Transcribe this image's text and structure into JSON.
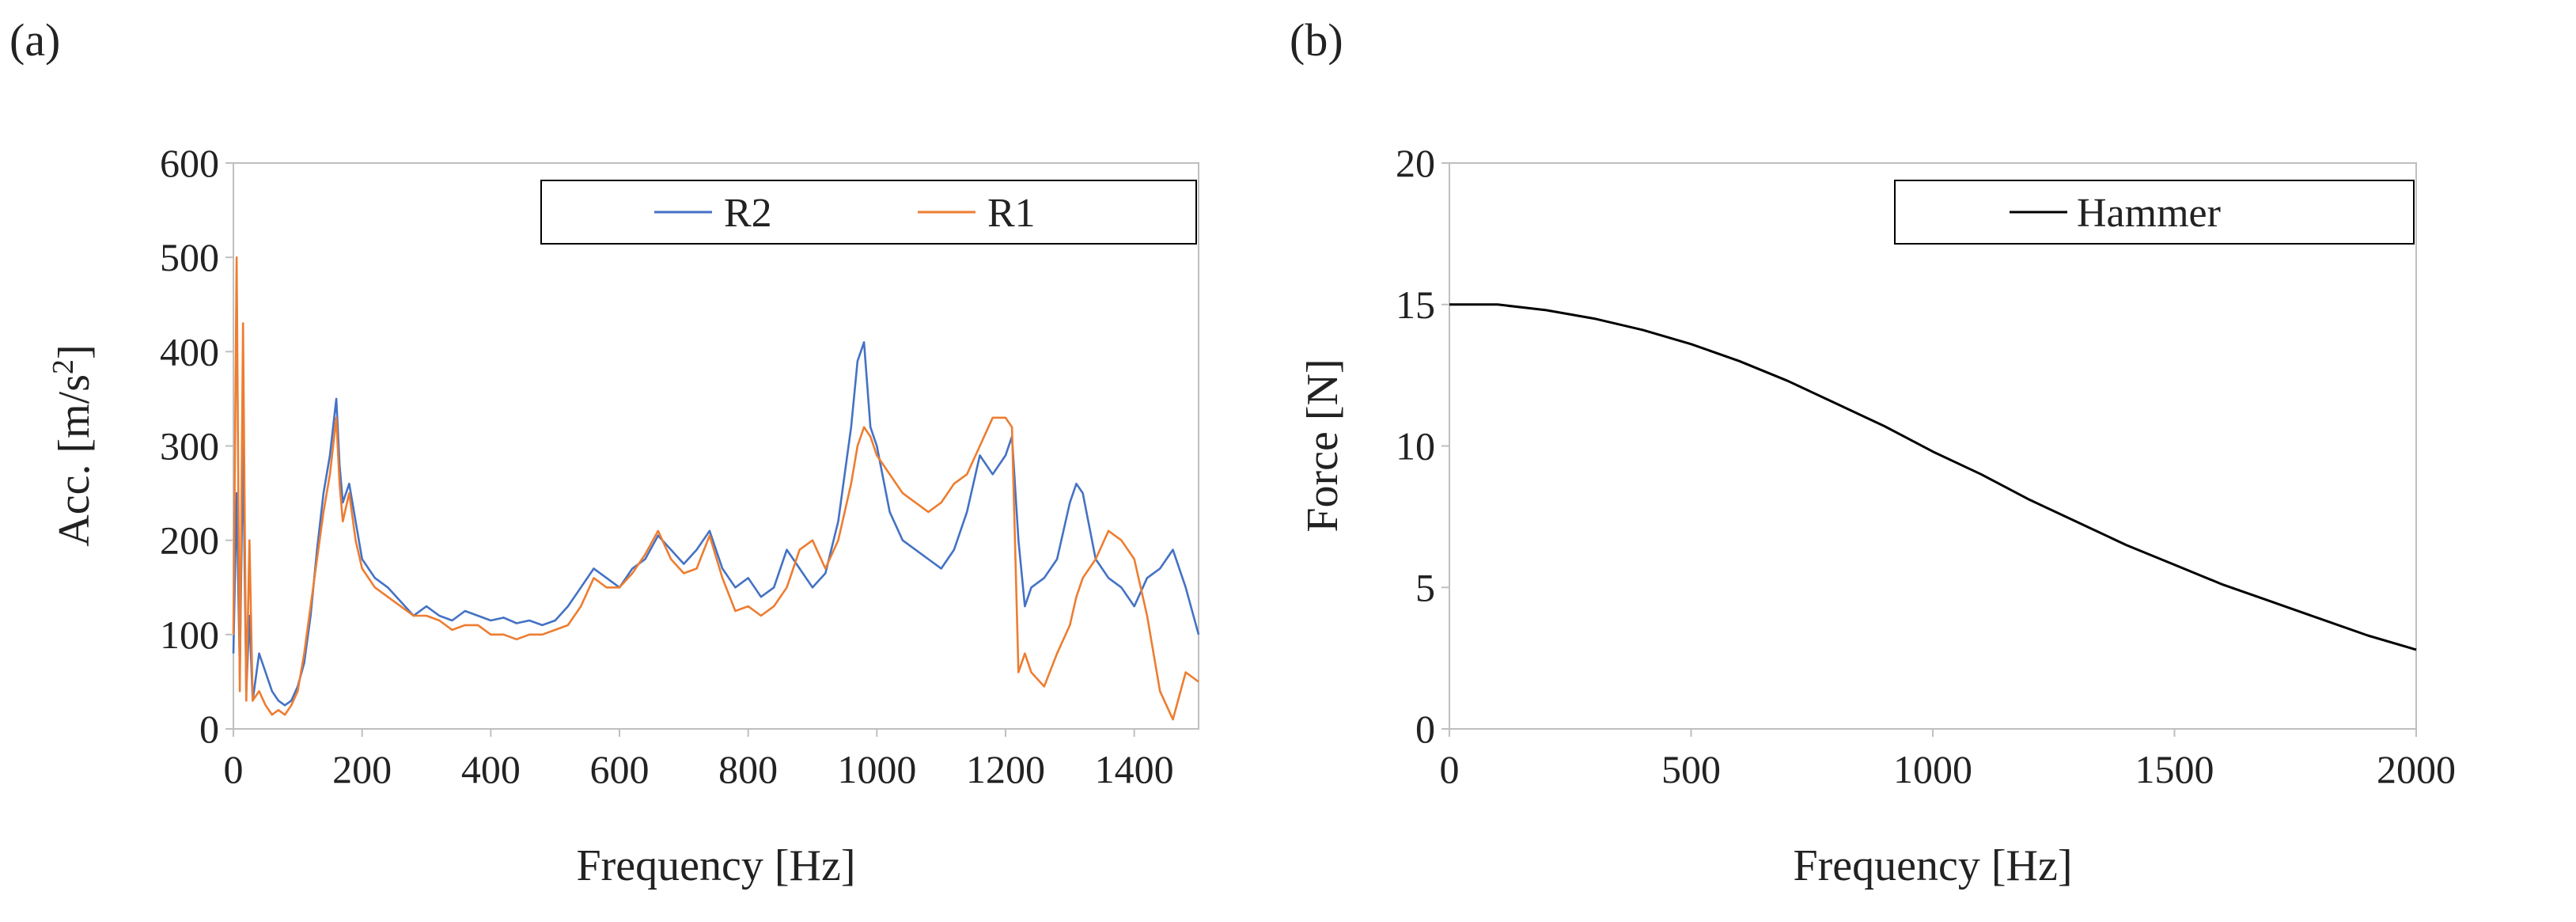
{
  "chart_data": [
    {
      "panel": "(a)",
      "type": "line",
      "title": "",
      "xlabel": "Frequency [Hz]",
      "ylabel_main": "Acc. [m/s",
      "ylabel_sup": "2",
      "ylabel_end": "]",
      "xlim": [
        0,
        1500
      ],
      "ylim": [
        0,
        600
      ],
      "xticks": [
        0,
        200,
        400,
        600,
        800,
        1000,
        1200,
        1400
      ],
      "yticks": [
        0,
        100,
        200,
        300,
        400,
        500,
        600
      ],
      "legend_position": "top-right",
      "series": [
        {
          "name": "R2",
          "color": "#4472c4",
          "x": [
            0,
            5,
            10,
            15,
            20,
            25,
            30,
            40,
            50,
            60,
            70,
            80,
            90,
            100,
            110,
            120,
            130,
            140,
            150,
            160,
            165,
            170,
            180,
            190,
            200,
            220,
            240,
            260,
            280,
            300,
            320,
            340,
            360,
            380,
            400,
            420,
            440,
            460,
            480,
            500,
            520,
            540,
            560,
            580,
            600,
            620,
            640,
            660,
            680,
            700,
            720,
            740,
            760,
            780,
            800,
            820,
            840,
            860,
            880,
            900,
            920,
            940,
            960,
            970,
            980,
            990,
            1000,
            1020,
            1040,
            1060,
            1080,
            1100,
            1120,
            1140,
            1160,
            1180,
            1200,
            1210,
            1220,
            1230,
            1240,
            1260,
            1280,
            1300,
            1310,
            1320,
            1340,
            1360,
            1380,
            1400,
            1420,
            1440,
            1460,
            1480,
            1500
          ],
          "y": [
            80,
            250,
            60,
            300,
            40,
            120,
            30,
            80,
            60,
            40,
            30,
            25,
            30,
            45,
            70,
            120,
            190,
            250,
            290,
            350,
            280,
            240,
            260,
            220,
            180,
            160,
            150,
            135,
            120,
            130,
            120,
            115,
            125,
            120,
            115,
            118,
            112,
            115,
            110,
            115,
            130,
            150,
            170,
            160,
            150,
            170,
            180,
            205,
            190,
            175,
            190,
            210,
            170,
            150,
            160,
            140,
            150,
            190,
            170,
            150,
            165,
            220,
            320,
            390,
            410,
            320,
            300,
            230,
            200,
            190,
            180,
            170,
            190,
            230,
            290,
            270,
            290,
            310,
            200,
            130,
            150,
            160,
            180,
            240,
            260,
            250,
            180,
            160,
            150,
            130,
            160,
            170,
            190,
            150,
            100
          ]
        },
        {
          "name": "R1",
          "color": "#ed7d31",
          "x": [
            0,
            5,
            10,
            15,
            20,
            25,
            30,
            40,
            50,
            60,
            70,
            80,
            90,
            100,
            110,
            120,
            130,
            140,
            150,
            160,
            165,
            170,
            180,
            190,
            200,
            220,
            240,
            260,
            280,
            300,
            320,
            340,
            360,
            380,
            400,
            420,
            440,
            460,
            480,
            500,
            520,
            540,
            560,
            580,
            600,
            620,
            640,
            660,
            680,
            700,
            720,
            740,
            760,
            780,
            800,
            820,
            840,
            860,
            880,
            900,
            920,
            940,
            960,
            970,
            980,
            990,
            1000,
            1020,
            1040,
            1060,
            1080,
            1100,
            1120,
            1140,
            1160,
            1180,
            1200,
            1210,
            1220,
            1230,
            1240,
            1260,
            1280,
            1300,
            1310,
            1320,
            1340,
            1360,
            1380,
            1400,
            1420,
            1440,
            1460,
            1480,
            1500
          ],
          "y": [
            100,
            500,
            40,
            430,
            30,
            200,
            30,
            40,
            25,
            15,
            20,
            15,
            25,
            40,
            80,
            130,
            180,
            230,
            270,
            330,
            260,
            220,
            250,
            200,
            170,
            150,
            140,
            130,
            120,
            120,
            115,
            105,
            110,
            110,
            100,
            100,
            95,
            100,
            100,
            105,
            110,
            130,
            160,
            150,
            150,
            165,
            185,
            210,
            180,
            165,
            170,
            205,
            160,
            125,
            130,
            120,
            130,
            150,
            190,
            200,
            170,
            200,
            260,
            300,
            320,
            310,
            290,
            270,
            250,
            240,
            230,
            240,
            260,
            270,
            300,
            330,
            330,
            320,
            60,
            80,
            60,
            45,
            80,
            110,
            140,
            160,
            180,
            210,
            200,
            180,
            120,
            40,
            10,
            60,
            50
          ]
        }
      ]
    },
    {
      "panel": "(b)",
      "type": "line",
      "title": "",
      "xlabel": "Frequency [Hz]",
      "ylabel": "Force [N]",
      "xlim": [
        0,
        2000
      ],
      "ylim": [
        0,
        20
      ],
      "xticks": [
        0,
        500,
        1000,
        1500,
        2000
      ],
      "yticks": [
        0,
        5,
        10,
        15,
        20
      ],
      "legend_position": "top-right",
      "series": [
        {
          "name": "Hammer",
          "color": "#000000",
          "x": [
            0,
            100,
            200,
            300,
            400,
            500,
            600,
            700,
            800,
            900,
            1000,
            1100,
            1200,
            1300,
            1400,
            1500,
            1600,
            1700,
            1800,
            1900,
            2000
          ],
          "y": [
            15.0,
            15.0,
            14.8,
            14.5,
            14.1,
            13.6,
            13.0,
            12.3,
            11.5,
            10.7,
            9.8,
            9.0,
            8.1,
            7.3,
            6.5,
            5.8,
            5.1,
            4.5,
            3.9,
            3.3,
            2.8
          ]
        }
      ]
    }
  ]
}
